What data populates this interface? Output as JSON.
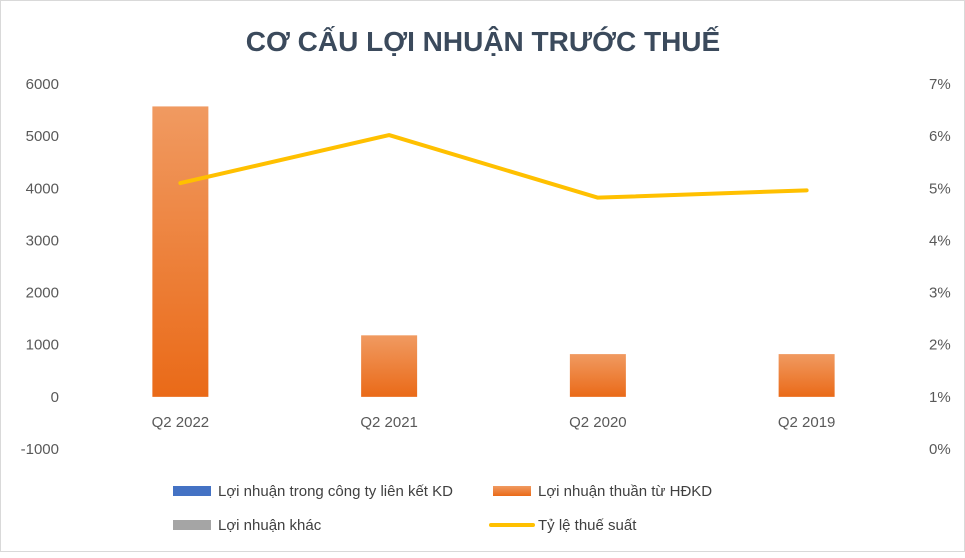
{
  "chart_data": {
    "type": "bar",
    "title": "CƠ CẤU LỢI NHUẬN TRƯỚC THUẾ",
    "categories": [
      "Q2 2022",
      "Q2 2021",
      "Q2 2020",
      "Q2 2019"
    ],
    "series": [
      {
        "name": "Lợi nhuận trong công ty liên kết KD",
        "kind": "bar",
        "axis": "left",
        "values": [
          0,
          0,
          0,
          0
        ],
        "color": "#4472c4"
      },
      {
        "name": "Lợi nhuận thuần từ HĐKD",
        "kind": "bar",
        "axis": "left",
        "values": [
          5570,
          1180,
          820,
          820
        ],
        "color": "#ed7d31"
      },
      {
        "name": "Lợi nhuận khác",
        "kind": "bar",
        "axis": "left",
        "values": [
          0,
          0,
          0,
          0
        ],
        "color": "#a5a5a5"
      },
      {
        "name": "Tỷ lệ thuế suất",
        "kind": "line",
        "axis": "right",
        "values": [
          5.1,
          6.02,
          4.82,
          4.96
        ],
        "color": "#ffc000"
      }
    ],
    "y_left": {
      "min": -1000,
      "max": 6000,
      "ticks": [
        "6000",
        "5000",
        "4000",
        "3000",
        "2000",
        "1000",
        "0",
        "-1000"
      ]
    },
    "y_right": {
      "min": 0,
      "max": 7,
      "ticks": [
        "7%",
        "6%",
        "5%",
        "4%",
        "3%",
        "2%",
        "1%",
        "0%"
      ]
    },
    "legend": {
      "placement": "bottom",
      "items": [
        "Lợi nhuận trong công ty liên kết KD",
        "Lợi nhuận thuần từ HĐKD",
        "Lợi nhuận khác",
        "Tỷ lệ thuế suất"
      ]
    },
    "grid": false
  }
}
